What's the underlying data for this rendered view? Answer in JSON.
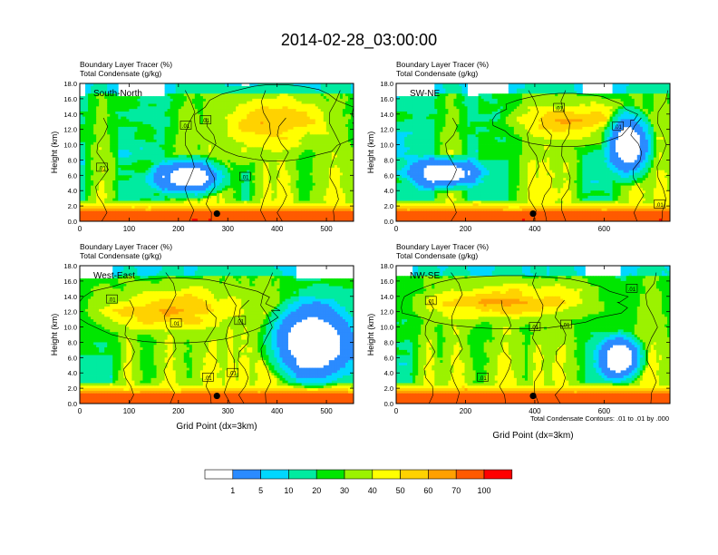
{
  "figure_title": "2014-02-28_03:00:00",
  "colorbar": {
    "levels": [
      "1",
      "5",
      "10",
      "20",
      "30",
      "40",
      "50",
      "60",
      "70",
      "100"
    ],
    "colors": [
      "#ffffff",
      "#2b8bff",
      "#00d7ff",
      "#00eba0",
      "#00e600",
      "#9bf200",
      "#ffff00",
      "#ffd200",
      "#ffa000",
      "#ff5a00",
      "#ff0000"
    ]
  },
  "contour_note": "Total Condensate Contours: .01 to .01 by .000",
  "chart_data": [
    {
      "type": "heatmap",
      "panel": "South-North",
      "title_line1": "Boundary Layer Tracer   (%)",
      "title_line2": "Total Condensate   (g/kg)",
      "ylabel": "Height (km)",
      "xlabel": "",
      "xlim": [
        0,
        555
      ],
      "ylim": [
        0,
        18
      ],
      "xticks": [
        0,
        100,
        200,
        300,
        400,
        500
      ],
      "yticks": [
        "0.0",
        "2.0",
        "4.0",
        "6.0",
        "8.0",
        "10.0",
        "12.0",
        "14.0",
        "16.0",
        "18.0"
      ],
      "marker": {
        "x": 278,
        "y": 1.0
      },
      "contour_labels": [
        {
          "text": ".01",
          "x": 45,
          "y": 7.0
        },
        {
          "text": ".01",
          "x": 215,
          "y": 12.5
        },
        {
          "text": ".01",
          "x": 255,
          "y": 13.2
        },
        {
          "text": ".01",
          "x": 335,
          "y": 5.8
        }
      ]
    },
    {
      "type": "heatmap",
      "panel": "SW-NE",
      "title_line1": "Boundary Layer Tracer   (%)",
      "title_line2": "Total Condensate   (g/kg)",
      "ylabel": "Height (km)",
      "xlabel": "",
      "xlim": [
        0,
        790
      ],
      "ylim": [
        0,
        18
      ],
      "xticks": [
        0,
        200,
        400,
        600
      ],
      "yticks": [
        "0.0",
        "2.0",
        "4.0",
        "6.0",
        "8.0",
        "10.0",
        "12.0",
        "14.0",
        "16.0",
        "18.0"
      ],
      "marker": {
        "x": 395,
        "y": 1.0
      },
      "contour_labels": [
        {
          "text": ".01",
          "x": 470,
          "y": 14.8
        },
        {
          "text": ".01",
          "x": 640,
          "y": 12.4
        },
        {
          "text": ".01",
          "x": 760,
          "y": 2.2
        }
      ]
    },
    {
      "type": "heatmap",
      "panel": "West-East",
      "title_line1": "Boundary Layer Tracer   (%)",
      "title_line2": "Total Condensate   (g/kg)",
      "ylabel": "Height (km)",
      "xlabel": "Grid Point (dx=3km)",
      "xlim": [
        0,
        555
      ],
      "ylim": [
        0,
        18
      ],
      "xticks": [
        0,
        100,
        200,
        300,
        400,
        500
      ],
      "yticks": [
        "0.0",
        "2.0",
        "4.0",
        "6.0",
        "8.0",
        "10.0",
        "12.0",
        "14.0",
        "16.0",
        "18.0"
      ],
      "marker": {
        "x": 278,
        "y": 1.0
      },
      "contour_labels": [
        {
          "text": ".01",
          "x": 65,
          "y": 13.6
        },
        {
          "text": ".01",
          "x": 195,
          "y": 10.5
        },
        {
          "text": ".01",
          "x": 325,
          "y": 10.8
        },
        {
          "text": ".01",
          "x": 260,
          "y": 3.4
        },
        {
          "text": ".01",
          "x": 310,
          "y": 4.0
        }
      ]
    },
    {
      "type": "heatmap",
      "panel": "NW-SE",
      "title_line1": "Boundary Layer Tracer   (%)",
      "title_line2": "Total Condensate   (g/kg)",
      "ylabel": "Height (km)",
      "xlabel": "Grid Point (dx=3km)",
      "xlim": [
        0,
        790
      ],
      "ylim": [
        0,
        18
      ],
      "xticks": [
        0,
        200,
        400,
        600
      ],
      "yticks": [
        "0.0",
        "2.0",
        "4.0",
        "6.0",
        "8.0",
        "10.0",
        "12.0",
        "14.0",
        "16.0",
        "18.0"
      ],
      "marker": {
        "x": 395,
        "y": 1.0
      },
      "contour_labels": [
        {
          "text": ".01",
          "x": 100,
          "y": 13.4
        },
        {
          "text": ".01",
          "x": 490,
          "y": 10.3
        },
        {
          "text": ".01",
          "x": 400,
          "y": 10.0
        },
        {
          "text": ".01",
          "x": 250,
          "y": 3.4
        },
        {
          "text": ".01",
          "x": 680,
          "y": 15.0
        }
      ]
    }
  ]
}
